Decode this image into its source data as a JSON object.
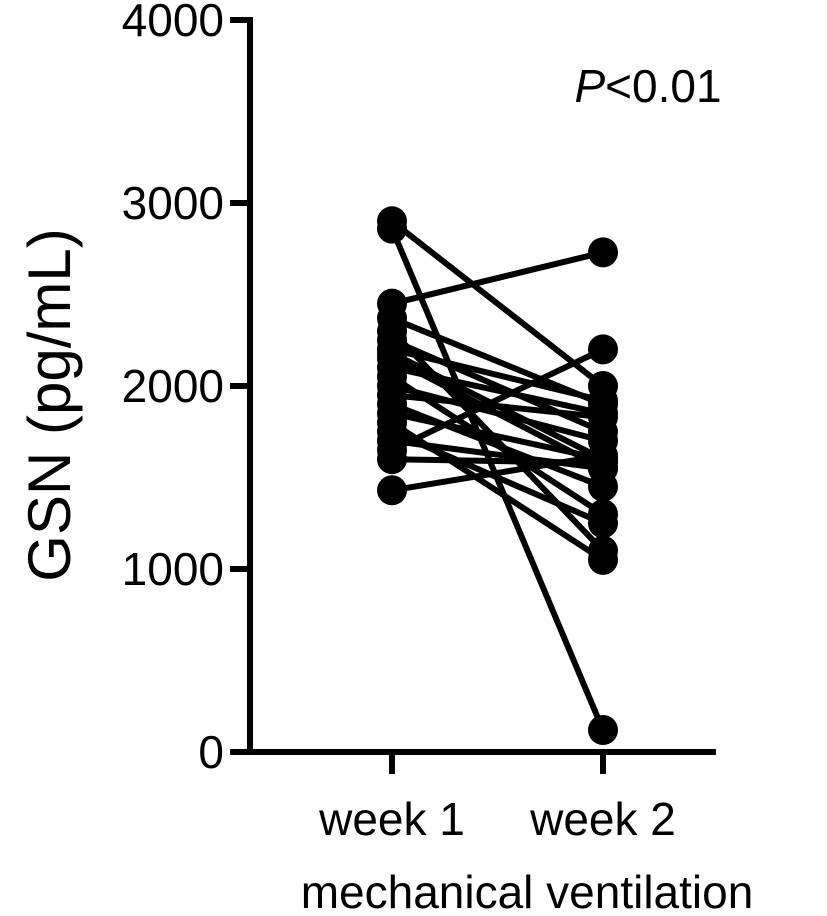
{
  "chart_data": {
    "type": "line",
    "categories": [
      "week 1",
      "week 2"
    ],
    "ylabel": "GSN (pg/mL)",
    "xlabel": "mechanical ventilation",
    "ylim": [
      0,
      4000
    ],
    "yticks": [
      0,
      1000,
      2000,
      3000,
      4000
    ],
    "yticklabels": [
      "0",
      "1000",
      "2000",
      "3000",
      "4000"
    ],
    "grid": false,
    "annotation": {
      "italic": "P",
      "rest": "<0.01"
    },
    "marker_color": "#000000",
    "pairs": [
      [
        2900,
        2000
      ],
      [
        2860,
        120
      ],
      [
        2450,
        2730
      ],
      [
        2370,
        1900
      ],
      [
        2300,
        1100
      ],
      [
        2250,
        1750
      ],
      [
        2200,
        1920
      ],
      [
        2180,
        1600
      ],
      [
        2150,
        1550
      ],
      [
        2100,
        1850
      ],
      [
        2050,
        1300
      ],
      [
        2000,
        1700
      ],
      [
        1950,
        1830
      ],
      [
        1900,
        1450
      ],
      [
        1850,
        1600
      ],
      [
        1800,
        1050
      ],
      [
        1750,
        1250
      ],
      [
        1700,
        1550
      ],
      [
        1650,
        2200
      ],
      [
        1600,
        1580
      ],
      [
        1430,
        1620
      ]
    ]
  }
}
